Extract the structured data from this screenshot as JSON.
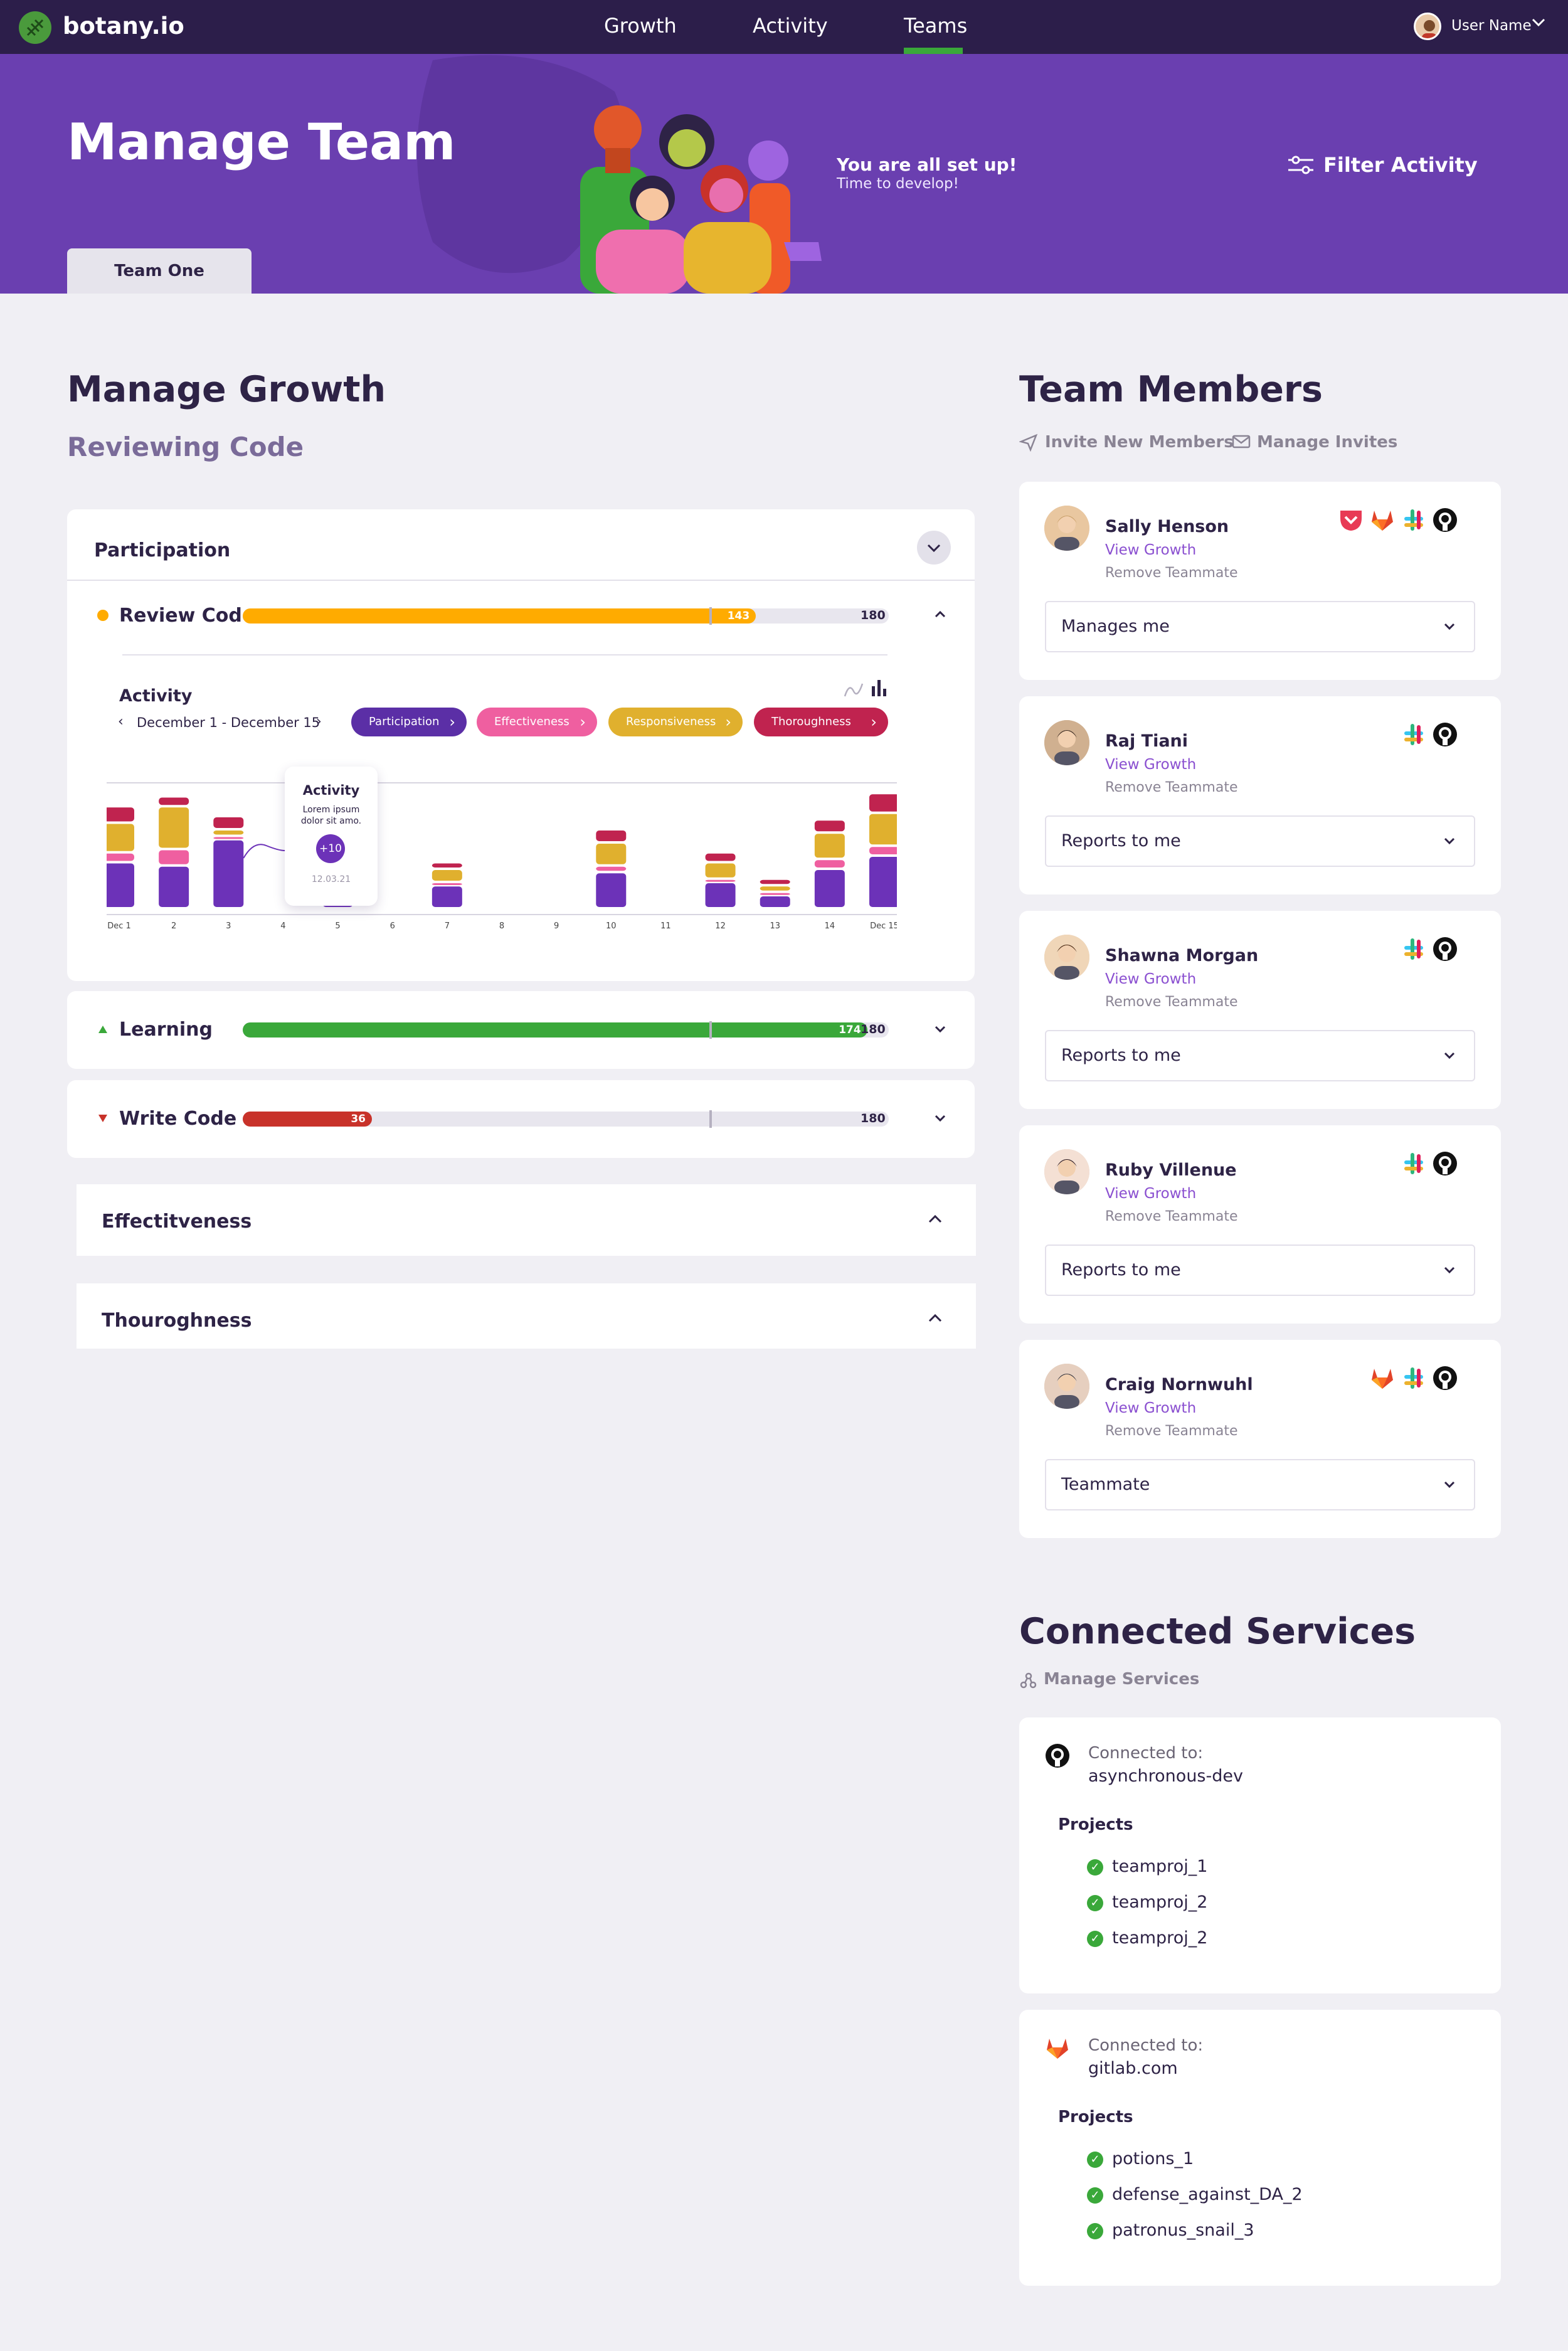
{
  "nav": {
    "brand": "botany.io",
    "links": [
      "Growth",
      "Activity",
      "Teams"
    ],
    "active": "Teams",
    "user_name": "User Name"
  },
  "hero": {
    "title": "Manage Team",
    "message_title": "You are all set up!",
    "message_sub": "Time to develop!",
    "filter_label": "Filter Activity",
    "team_tab": "Team One"
  },
  "growth": {
    "title": "Manage Growth",
    "subtitle": "Reviewing Code",
    "participation_label": "Participation",
    "metrics": [
      {
        "label": "Review Code",
        "value": 143,
        "max": 180,
        "color": "#ffab00"
      },
      {
        "label": "Learning",
        "value": 174,
        "max": 180,
        "color": "#3aa83a"
      },
      {
        "label": "Write Code",
        "value": 36,
        "max": 180,
        "color": "#c8322a"
      }
    ],
    "target_value": 130,
    "activity_title": "Activity",
    "date_range": "December 1 - December 15",
    "chips": [
      {
        "label": "Participation",
        "color": "#5b2fa6"
      },
      {
        "label": "Effectiveness",
        "color": "#ef5fa0"
      },
      {
        "label": "Responsiveness",
        "color": "#e0b02e"
      },
      {
        "label": "Thoroughness",
        "color": "#c0234f"
      }
    ],
    "tooltip": {
      "title": "Activity",
      "text": "Lorem ipsum dolor sit amo.",
      "badge": "+10",
      "date": "12.03.21"
    },
    "effectiveness_label": "Effectitveness",
    "thoroughness_label": "Thouroghness"
  },
  "chart_data": {
    "type": "bar",
    "stacked": true,
    "categories": [
      "Dec 1",
      "2",
      "3",
      "4",
      "5",
      "6",
      "7",
      "8",
      "9",
      "10",
      "11",
      "12",
      "13",
      "14",
      "Dec 15"
    ],
    "series": [
      {
        "name": "Participation",
        "color": "#6c32b8",
        "values": [
          14,
          13,
          21,
          0,
          4,
          0,
          7,
          0,
          0,
          11,
          0,
          8,
          4,
          12,
          16
        ]
      },
      {
        "name": "Effectiveness",
        "color": "#ef5fa0",
        "values": [
          3,
          5,
          1,
          0,
          0,
          0,
          1,
          0,
          0,
          2,
          0,
          1,
          1,
          3,
          3
        ]
      },
      {
        "name": "Responsiveness",
        "color": "#e0b02e",
        "values": [
          9,
          13,
          2,
          0,
          0,
          0,
          4,
          0,
          0,
          7,
          0,
          5,
          2,
          8,
          10
        ]
      },
      {
        "name": "Thoroughness",
        "color": "#c0234f",
        "values": [
          5,
          3,
          4,
          0,
          0,
          0,
          2,
          0,
          0,
          4,
          0,
          3,
          2,
          4,
          6
        ]
      }
    ],
    "ylim": [
      0,
      40
    ],
    "grid": false
  },
  "team": {
    "title": "Team Members",
    "invite_label": "Invite New Members",
    "manage_invites_label": "Manage Invites",
    "remove_label": "Remove Teammate",
    "view_growth_label": "View Growth",
    "members": [
      {
        "name": "Sally Henson",
        "relation": "Manages me",
        "services": [
          "pocket-icon",
          "gitlab-icon",
          "slack-icon",
          "github-icon"
        ]
      },
      {
        "name": "Raj Tiani",
        "relation": "Reports to me",
        "services": [
          "slack-icon",
          "github-icon"
        ]
      },
      {
        "name": "Shawna Morgan",
        "relation": "Reports to me",
        "services": [
          "slack-icon",
          "github-icon"
        ]
      },
      {
        "name": "Ruby Villenue",
        "relation": "Reports to me",
        "services": [
          "slack-icon",
          "github-icon"
        ]
      },
      {
        "name": "Craig Nornwuhl",
        "relation": "Teammate",
        "services": [
          "gitlab-icon",
          "slack-icon",
          "github-icon"
        ]
      }
    ]
  },
  "services": {
    "title": "Connected Services",
    "manage_label": "Manage Services",
    "connected_to_label": "Connected to:",
    "projects_label": "Projects",
    "items": [
      {
        "icon": "github-icon",
        "target": "asynchronous-dev",
        "projects": [
          "teamproj_1",
          "teamproj_2",
          "teamproj_2"
        ]
      },
      {
        "icon": "gitlab-icon",
        "target": "gitlab.com",
        "projects": [
          "potions_1",
          "defense_against_DA_2",
          "patronus_snail_3"
        ]
      }
    ]
  }
}
